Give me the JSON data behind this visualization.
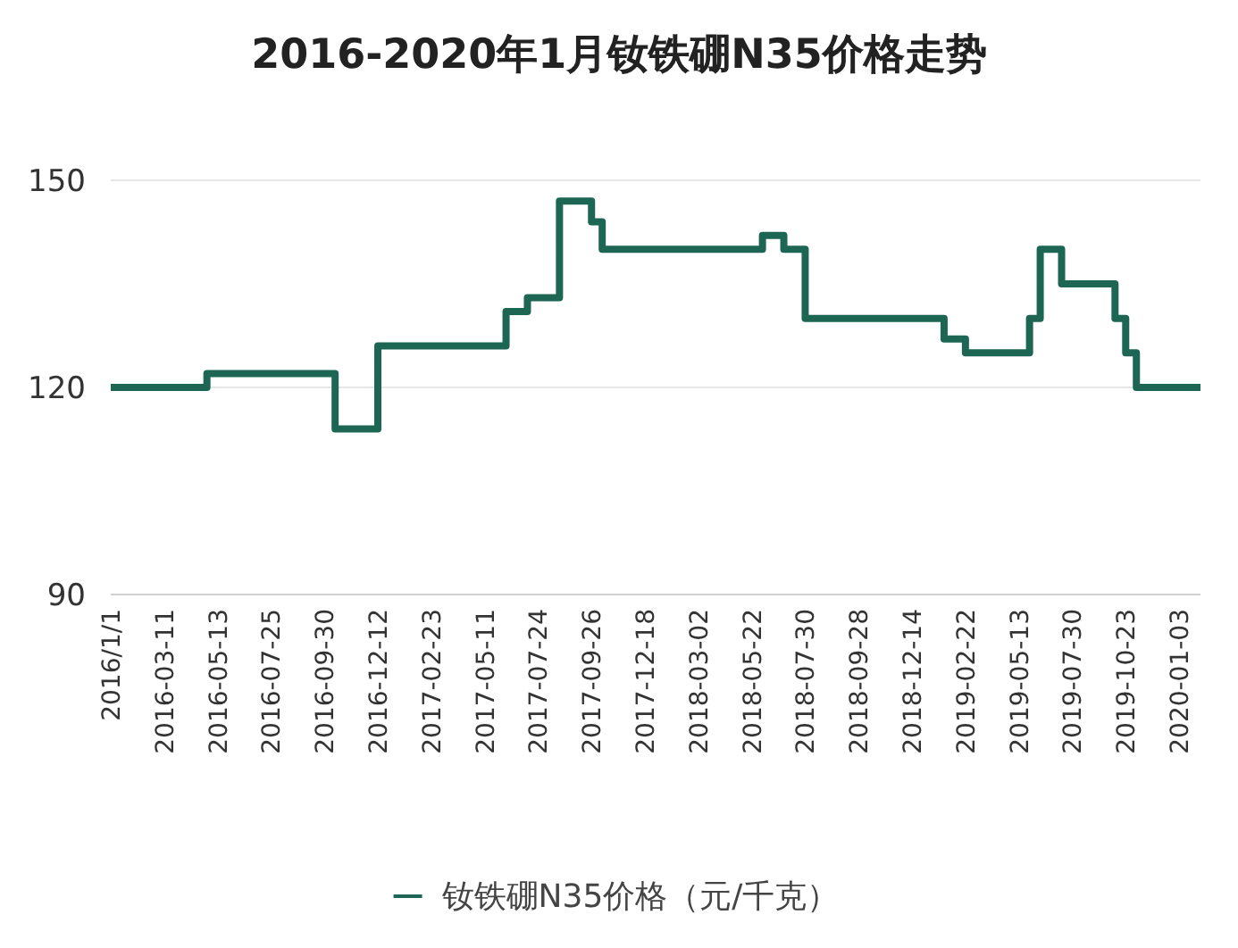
{
  "chart_data": {
    "type": "step",
    "title": "2016-2020年1月钕铁硼N35价格走势",
    "categories": [
      "2016/1/1",
      null,
      null,
      null,
      null,
      "2016-03-11",
      null,
      null,
      null,
      null,
      "2016-05-13",
      null,
      null,
      null,
      null,
      "2016-07-25",
      null,
      null,
      null,
      null,
      "2016-09-30",
      null,
      null,
      null,
      null,
      "2016-12-12",
      null,
      null,
      null,
      null,
      "2017-02-23",
      null,
      null,
      null,
      null,
      "2017-05-11",
      null,
      null,
      null,
      null,
      "2017-07-24",
      null,
      null,
      null,
      null,
      "2017-09-26",
      null,
      null,
      null,
      null,
      "2017-12-18",
      null,
      null,
      null,
      null,
      "2018-03-02",
      null,
      null,
      null,
      null,
      "2018-05-22",
      null,
      null,
      null,
      null,
      "2018-07-30",
      null,
      null,
      null,
      null,
      "2018-09-28",
      null,
      null,
      null,
      null,
      "2018-12-14",
      null,
      null,
      null,
      null,
      "2019-02-22",
      null,
      null,
      null,
      null,
      "2019-05-13",
      null,
      null,
      null,
      null,
      "2019-07-30",
      null,
      null,
      null,
      null,
      "2019-10-23",
      null,
      null,
      null,
      null,
      "2020-01-03",
      null,
      null
    ],
    "series": [
      {
        "name": "钕铁硼N35价格（元/千克）",
        "color": "#1d6654",
        "values": [
          120,
          120,
          120,
          120,
          120,
          120,
          120,
          120,
          120,
          122,
          122,
          122,
          122,
          122,
          122,
          122,
          122,
          122,
          122,
          122,
          122,
          114,
          114,
          114,
          114,
          126,
          126,
          126,
          126,
          126,
          126,
          126,
          126,
          126,
          126,
          126,
          126,
          131,
          131,
          133,
          133,
          133,
          147,
          147,
          147,
          144,
          140,
          140,
          140,
          140,
          140,
          140,
          140,
          140,
          140,
          140,
          140,
          140,
          140,
          140,
          140,
          142,
          142,
          140,
          140,
          130,
          130,
          130,
          130,
          130,
          130,
          130,
          130,
          130,
          130,
          130,
          130,
          130,
          127,
          127,
          125,
          125,
          125,
          125,
          125,
          125,
          130,
          140,
          140,
          135,
          135,
          135,
          135,
          135,
          130,
          125,
          120,
          120,
          120,
          120,
          120,
          120,
          120
        ]
      }
    ],
    "ylim": [
      90,
      150
    ],
    "yticks": [
      90,
      120,
      150
    ],
    "grid": "y",
    "legend": "bottom"
  }
}
